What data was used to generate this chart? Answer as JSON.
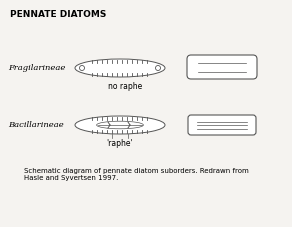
{
  "title": "PENNATE DIATOMS",
  "label1": "Fragilarineae",
  "label2": "Bacillarineae",
  "label_no_raphe": "no raphe",
  "label_raphe": "'raphe'",
  "caption": "    Schematic diagram of pennate diatom suborders. Redrawn from\n    Hasle and Syvertsen 1997.",
  "bg_color": "#f5f3f0",
  "line_color": "#555555"
}
